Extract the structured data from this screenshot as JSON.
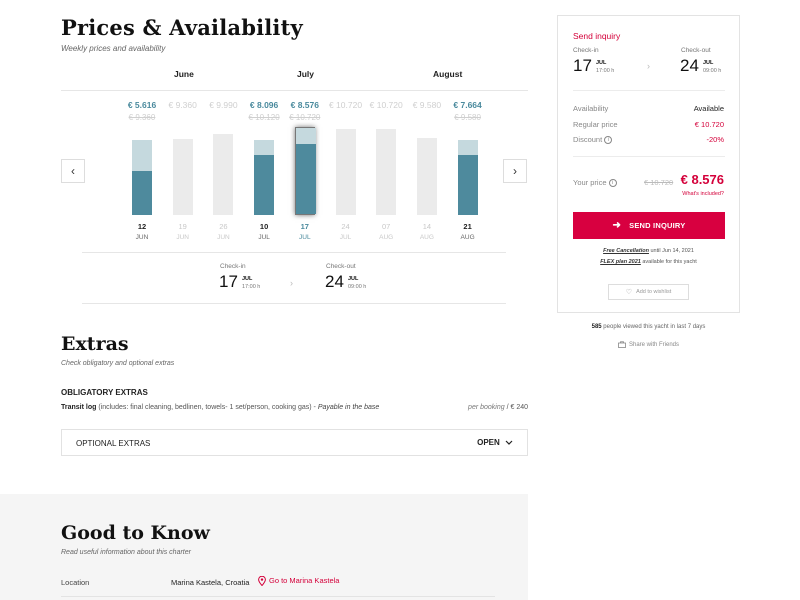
{
  "prices": {
    "title": "Prices & Availability",
    "subtitle": "Weekly prices and availability",
    "months": [
      "June",
      "July",
      "August"
    ],
    "weeks": [
      {
        "price": "€ 5.616",
        "old": "€ 9.360",
        "day": "12",
        "mon": "JUN",
        "avail": true,
        "fill": 0.59,
        "top_tint": 0.41
      },
      {
        "price": "€ 9.360",
        "old": "",
        "day": "19",
        "mon": "JUN",
        "avail": false
      },
      {
        "price": "€ 9.990",
        "old": "",
        "day": "26",
        "mon": "JUN",
        "avail": false
      },
      {
        "price": "€ 8.096",
        "old": "€ 10.120",
        "day": "10",
        "mon": "JUL",
        "avail": true,
        "fill": 0.8,
        "top_tint": 0.2
      },
      {
        "price": "€ 8.576",
        "old": "€ 10.720",
        "day": "17",
        "mon": "JUL",
        "avail": true,
        "fill": 0.8,
        "top_tint": 0.2,
        "selected": true
      },
      {
        "price": "€ 10.720",
        "old": "",
        "day": "24",
        "mon": "JUL",
        "avail": false
      },
      {
        "price": "€ 10.720",
        "old": "",
        "day": "07",
        "mon": "AUG",
        "avail": false
      },
      {
        "price": "€ 9.580",
        "old": "",
        "day": "14",
        "mon": "AUG",
        "avail": false
      },
      {
        "price": "€ 7.664",
        "old": "€ 9.580",
        "day": "21",
        "mon": "AUG",
        "avail": true,
        "fill": 0.8,
        "top_tint": 0.2
      }
    ],
    "checkin_label": "Check-in",
    "checkin_day": "17",
    "checkin_mon": "JUL",
    "checkin_time": "17:00 h",
    "checkout_label": "Check-out",
    "checkout_day": "24",
    "checkout_mon": "JUL",
    "checkout_time": "09:00 h"
  },
  "extras": {
    "title": "Extras",
    "subtitle": "Check obligatory and optional extras",
    "obligatory_heading": "OBLIGATORY EXTRAS",
    "item_name": "Transit log",
    "item_desc": " (includes: final cleaning, bedlinen, towels- 1 set/person, cooking gas) - ",
    "item_note": "Payable in the base",
    "item_unit": "per booking",
    "item_price": " / € 240",
    "optional_label": "OPTIONAL EXTRAS",
    "optional_toggle": "OPEN"
  },
  "good_to_know": {
    "title": "Good to Know",
    "subtitle": "Read useful information about this charter",
    "location_label": "Location",
    "location_value": "Marina Kastela, Croatia",
    "location_link": "Go to Marina Kastela"
  },
  "card": {
    "title": "Send inquiry",
    "checkin_label": "Check-in",
    "checkin_day": "17",
    "checkin_mon": "JUL",
    "checkin_time": "17:00 h",
    "checkout_label": "Check-out",
    "checkout_day": "24",
    "checkout_mon": "JUL",
    "checkout_time": "09:00 h",
    "availability_label": "Availability",
    "availability_value": "Available",
    "regular_label": "Regular price",
    "regular_value": "€ 10.720",
    "discount_label": "Discount",
    "discount_value": "-20%",
    "your_price_label": "Your price",
    "your_price_old": "€ 10.720",
    "your_price_value": "€ 8.576",
    "whats_included": "What's included?",
    "button_label": "SEND INQUIRY",
    "free_cancel_link": "Free Cancellation",
    "free_cancel_text": " until Jun 14, 2021",
    "flex_link": "FLEX plan 2021",
    "flex_text": " available for this yacht",
    "wishlist": "Add to wishlist"
  },
  "views_count": "585",
  "views_text": " people viewed this yacht in last 7 days",
  "share_text": "Share with Friends",
  "colors": {
    "accent_red": "#d4003a",
    "bar_blue": "#4e8a9d",
    "bar_tint": "#c5d9de",
    "bar_unavailable": "#ebebeb"
  }
}
